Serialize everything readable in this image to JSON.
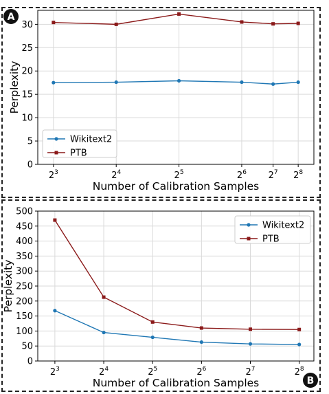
{
  "chart_data": [
    {
      "type": "line",
      "panel_badge": "A",
      "xlabel": "Number of Calibration Samples",
      "ylabel": "Perplexity",
      "x_base": "2",
      "x_exponents": [
        "3",
        "4",
        "5",
        "6",
        "7",
        "8"
      ],
      "x_log2": [
        3,
        4,
        5,
        6,
        6.5,
        6.9
      ],
      "ylim": [
        0,
        33
      ],
      "yticks": [
        0,
        5,
        10,
        15,
        20,
        25,
        30
      ],
      "grid": true,
      "legend_position": "bottom-left",
      "series": [
        {
          "name": "Wikitext2",
          "color": "#1f77b4",
          "marker": "circle",
          "values": [
            17.5,
            17.6,
            17.9,
            17.6,
            17.2,
            17.6
          ]
        },
        {
          "name": "PTB",
          "color": "#8b1a1a",
          "marker": "square",
          "values": [
            30.4,
            30.0,
            32.2,
            30.5,
            30.1,
            30.2
          ]
        }
      ]
    },
    {
      "type": "line",
      "panel_badge": "B",
      "xlabel": "Number of Calibration Samples",
      "ylabel": "Perplexity",
      "x_base": "2",
      "x_exponents": [
        "3",
        "4",
        "5",
        "6",
        "7",
        "8"
      ],
      "x_log2": [
        3,
        4,
        5,
        6,
        7,
        8
      ],
      "ylim": [
        0,
        500
      ],
      "yticks": [
        0,
        50,
        100,
        150,
        200,
        250,
        300,
        350,
        400,
        450,
        500
      ],
      "grid": true,
      "legend_position": "top-right",
      "series": [
        {
          "name": "Wikitext2",
          "color": "#1f77b4",
          "marker": "circle",
          "values": [
            168,
            95,
            79,
            63,
            57,
            55
          ]
        },
        {
          "name": "PTB",
          "color": "#8b1a1a",
          "marker": "square",
          "values": [
            470,
            213,
            130,
            110,
            106,
            105
          ]
        }
      ]
    }
  ]
}
